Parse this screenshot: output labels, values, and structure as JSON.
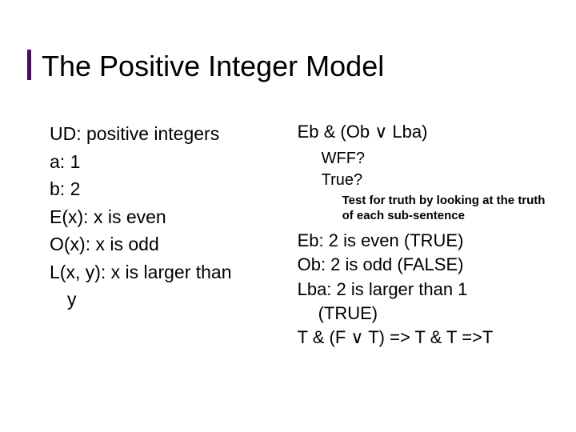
{
  "title": "The Positive Integer Model",
  "left": {
    "l1": "UD: positive integers",
    "l2": "a: 1",
    "l3": "b: 2",
    "l4": "E(x): x is even",
    "l5": "O(x): x is odd",
    "l6": "L(x, y): x is larger than",
    "l7": "y"
  },
  "right": {
    "formula": "Eb & (Ob ∨ Lba)",
    "q1": "WFF?",
    "q2": "True?",
    "note": "Test for truth by looking at the truth of each sub-sentence",
    "e1": "Eb: 2 is even (TRUE)",
    "e2": "Ob: 2 is odd (FALSE)",
    "e3": "Lba: 2 is larger than 1",
    "e3b": "(TRUE)",
    "e4": "T & (F ∨ T) => T & T =>T"
  },
  "colors": {
    "accent": "#4b0d63",
    "text": "#000000",
    "background": "#ffffff"
  },
  "fonts": {
    "title_size": 36,
    "body_size": 23,
    "sub1_size": 20,
    "sub2_size": 15
  }
}
